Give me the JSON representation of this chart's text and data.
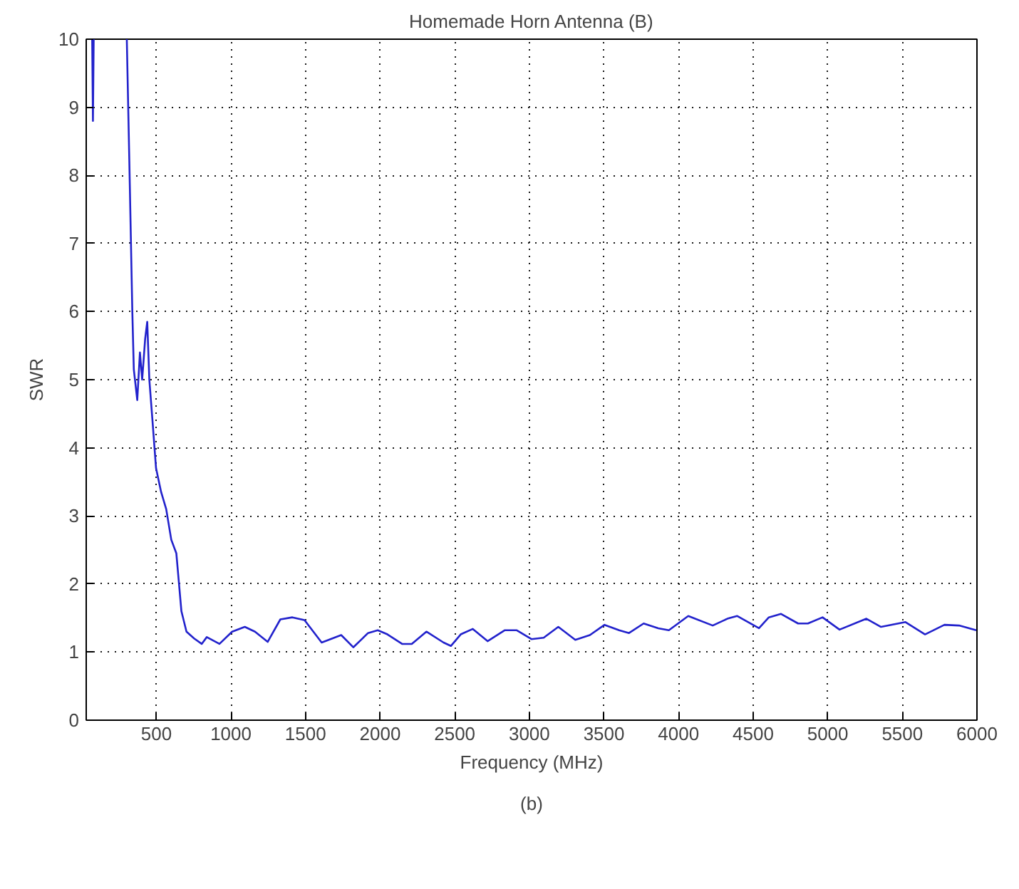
{
  "chart_data": {
    "type": "line",
    "title": "Homemade Horn Antenna (B)",
    "xlabel": "Frequency (MHz)",
    "ylabel": "SWR",
    "annotations": [
      "(b)"
    ],
    "xlim": [
      30,
      6000
    ],
    "ylim": [
      0,
      10
    ],
    "xticks": [
      500,
      1000,
      1500,
      2000,
      2500,
      3000,
      3500,
      4000,
      4500,
      5000,
      5500,
      6000
    ],
    "yticks": [
      0,
      1,
      2,
      3,
      4,
      5,
      6,
      7,
      8,
      9,
      10
    ],
    "grid": true,
    "line_style": "solid",
    "marker": "none",
    "series": [
      {
        "color": "#2222cc",
        "x": [
          70,
          75,
          80,
          null,
          302,
          319,
          339,
          349,
          372,
          390,
          405,
          425,
          439,
          453,
          474,
          498,
          532,
          566,
          600,
          634,
          668,
          702,
          753,
          804,
          838,
          923,
          1008,
          1093,
          1161,
          1246,
          1331,
          1412,
          1493,
          1608,
          1739,
          1820,
          1919,
          1984,
          2049,
          2147,
          2212,
          2310,
          2425,
          2474,
          2540,
          2621,
          2720,
          2834,
          2916,
          3014,
          3096,
          3194,
          3308,
          3406,
          3504,
          3602,
          3668,
          3766,
          3864,
          3935,
          4065,
          4229,
          4327,
          4392,
          4539,
          4605,
          4687,
          4801,
          4867,
          4965,
          5079,
          5259,
          5357,
          5521,
          5652,
          5782,
          5880,
          5995
        ],
        "values": [
          10,
          8.8,
          10,
          null,
          10,
          8.2,
          6.0,
          5.15,
          4.7,
          5.4,
          5.0,
          5.6,
          5.85,
          5.0,
          4.4,
          3.7,
          3.35,
          3.1,
          2.65,
          2.45,
          1.6,
          1.3,
          1.2,
          1.12,
          1.22,
          1.12,
          1.3,
          1.37,
          1.3,
          1.15,
          1.48,
          1.51,
          1.47,
          1.14,
          1.25,
          1.07,
          1.28,
          1.32,
          1.26,
          1.12,
          1.12,
          1.3,
          1.14,
          1.09,
          1.26,
          1.34,
          1.16,
          1.32,
          1.32,
          1.19,
          1.21,
          1.37,
          1.18,
          1.25,
          1.4,
          1.32,
          1.28,
          1.42,
          1.35,
          1.32,
          1.53,
          1.39,
          1.49,
          1.53,
          1.35,
          1.51,
          1.56,
          1.42,
          1.42,
          1.51,
          1.33,
          1.49,
          1.37,
          1.44,
          1.26,
          1.4,
          1.39,
          1.32
        ]
      }
    ]
  }
}
